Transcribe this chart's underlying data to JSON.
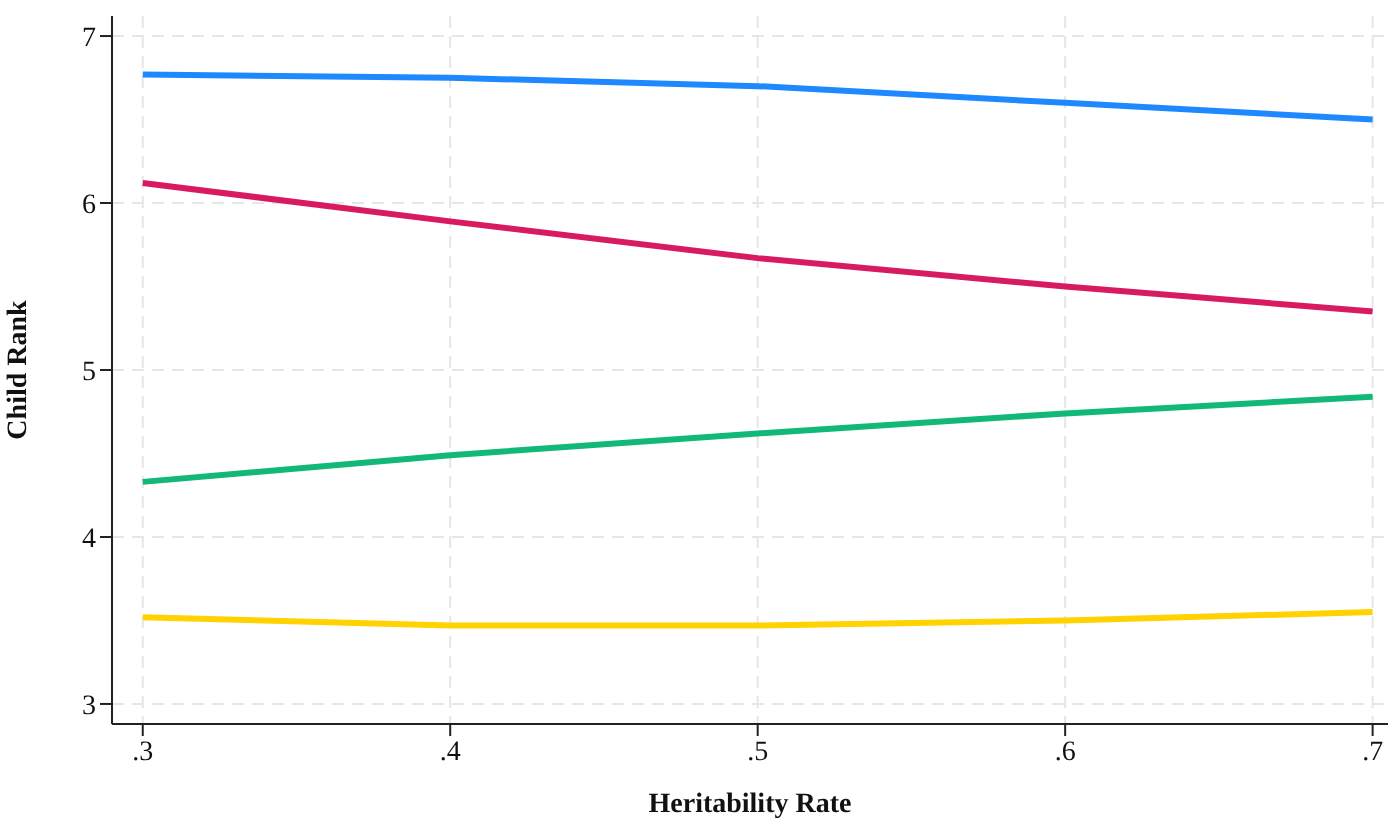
{
  "chart_data": {
    "type": "line",
    "xlabel": "Heritability Rate",
    "ylabel": "Child Rank",
    "x": [
      0.3,
      0.4,
      0.5,
      0.6,
      0.7
    ],
    "series": [
      {
        "color": "#1e88ff",
        "values": [
          6.77,
          6.75,
          6.7,
          6.6,
          6.5
        ]
      },
      {
        "color": "#d81b60",
        "values": [
          6.12,
          5.89,
          5.67,
          5.5,
          5.35
        ]
      },
      {
        "color": "#12b877",
        "values": [
          4.33,
          4.49,
          4.62,
          4.74,
          4.84
        ]
      },
      {
        "color": "#ffd200",
        "values": [
          3.52,
          3.47,
          3.47,
          3.5,
          3.55
        ]
      }
    ],
    "xlim": [
      0.29,
      0.705
    ],
    "ylim": [
      2.88,
      7.12
    ],
    "xticks": [
      {
        "value": 0.3,
        "label": ".3"
      },
      {
        "value": 0.4,
        "label": ".4"
      },
      {
        "value": 0.5,
        "label": ".5"
      },
      {
        "value": 0.6,
        "label": ".6"
      },
      {
        "value": 0.7,
        "label": ".7"
      }
    ],
    "yticks": [
      3,
      4,
      5,
      6,
      7
    ],
    "grid": true,
    "marker": "none",
    "line_style": "solid",
    "legend": false
  }
}
